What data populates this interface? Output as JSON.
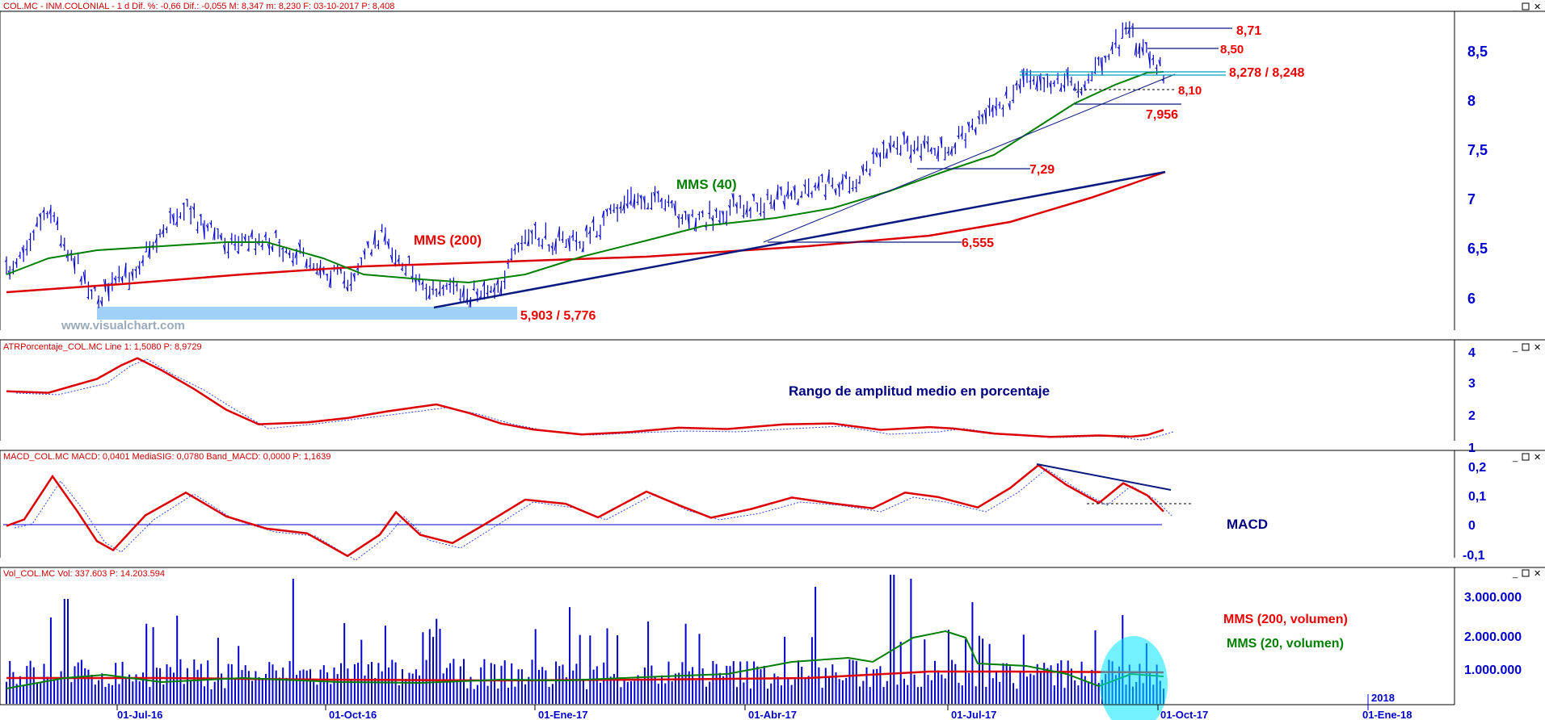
{
  "colors": {
    "price_bars": "#0000cc",
    "mms200": "#dd0000",
    "mms40": "#008000",
    "signal": "#3344ee",
    "annotation_red": "#ee0000",
    "annotation_green": "#008000",
    "annotation_navy": "#000080",
    "trend_navy": "#0a1a80",
    "support_band": "#9fd0f5",
    "highlight_circle": "#00e5ff",
    "axis_blue": "#0000cc"
  },
  "icons": [
    "minimize-icon",
    "restore-icon",
    "close-icon"
  ],
  "panels": {
    "price": {
      "header": "COL.MC - INM.COLONIAL - 1 d  Dif. %: -0,66  Dif.: -0,055  M: 8,347  m: 8,230  F: 03-10-2017  P: 8,408",
      "watermark": "www.visualchart.com",
      "labels": {
        "mms200": "MMS (200)",
        "mms40": "MMS (40)",
        "l871": "8,71",
        "l850": "8,50",
        "l8278": "8,278 / 8,248",
        "l810": "8,10",
        "l7956": "7,956",
        "l729": "7,29",
        "l6555": "6,555",
        "l5903": "5,903 / 5,776"
      },
      "yticks": [
        "6",
        "6,5",
        "7",
        "7,5",
        "8",
        "8,5"
      ]
    },
    "atr": {
      "header": "ATRPorcentaje_COL.MC  Line 1: 1,5080  P: 8,9729",
      "title": "Rango de amplitud medio en porcentaje",
      "yticks": [
        "1",
        "2",
        "3",
        "4"
      ]
    },
    "macd": {
      "header": "MACD_COL.MC  MACD: 0,0401  MediaSIG: 0,0780  Band_MACD: 0,0000  P: 1,1639",
      "title": "MACD",
      "yticks": [
        "-0,1",
        "0",
        "0,1",
        "0,2"
      ]
    },
    "volume": {
      "header": "Vol_COL.MC  Vol: 337.603  P: 14.203.594",
      "label_mms200": "MMS (200, volumen)",
      "label_mms20": "MMS (20, volumen)",
      "yticks": [
        "1.000.000",
        "2.000.000",
        "3.000.000"
      ]
    }
  },
  "xaxis": {
    "ticks": [
      "01-Jul-16",
      "01-Oct-16",
      "01-Ene-17",
      "01-Abr-17",
      "01-Jul-17",
      "01-Oct-17",
      "01-Ene-18"
    ],
    "year_marker": "2018"
  },
  "chart_data": [
    {
      "type": "line",
      "title": "COL.MC - INM.COLONIAL - 1 d",
      "x": [
        "01-Jul-16",
        "01-Oct-16",
        "01-Ene-17",
        "01-Abr-17",
        "01-Jul-17",
        "01-Oct-17"
      ],
      "series": [
        {
          "name": "MMS (200)",
          "values": [
            6.12,
            6.28,
            6.35,
            6.52,
            6.73,
            7.26
          ]
        },
        {
          "name": "MMS (40)",
          "values": [
            6.4,
            6.45,
            6.3,
            6.75,
            7.3,
            8.28
          ]
        }
      ],
      "annotations": [
        "8,71",
        "8,50",
        "8,278 / 8,248",
        "8,10",
        "7,956",
        "7,29",
        "6,555",
        "5,903 / 5,776"
      ],
      "ylim": [
        5.7,
        8.9
      ],
      "grid": false
    },
    {
      "type": "line",
      "title": "ATRPorcentaje_COL.MC",
      "series": [
        {
          "name": "Line 1",
          "values": [
            2.8,
            3.7,
            1.7,
            1.4,
            1.6,
            1.5
          ]
        }
      ],
      "ylim": [
        1,
        4
      ]
    },
    {
      "type": "line",
      "title": "MACD_COL.MC",
      "series": [
        {
          "name": "MACD",
          "values": [
            0.05,
            -0.05,
            0.08,
            0.08,
            0.2,
            0.04
          ]
        },
        {
          "name": "MediaSIG",
          "values": [
            0.04,
            -0.03,
            0.07,
            0.08,
            0.18,
            0.078
          ]
        }
      ],
      "ylim": [
        -0.13,
        0.22
      ]
    },
    {
      "type": "bar",
      "title": "Vol_COL.MC",
      "series": [
        {
          "name": "MMS (200, volumen)",
          "values": [
            850000,
            800000,
            750000,
            820000,
            950000,
            900000
          ]
        },
        {
          "name": "MMS (20, volumen)",
          "values": [
            900000,
            600000,
            700000,
            1100000,
            1200000,
            800000
          ]
        }
      ],
      "ylim": [
        0,
        3500000
      ]
    }
  ]
}
